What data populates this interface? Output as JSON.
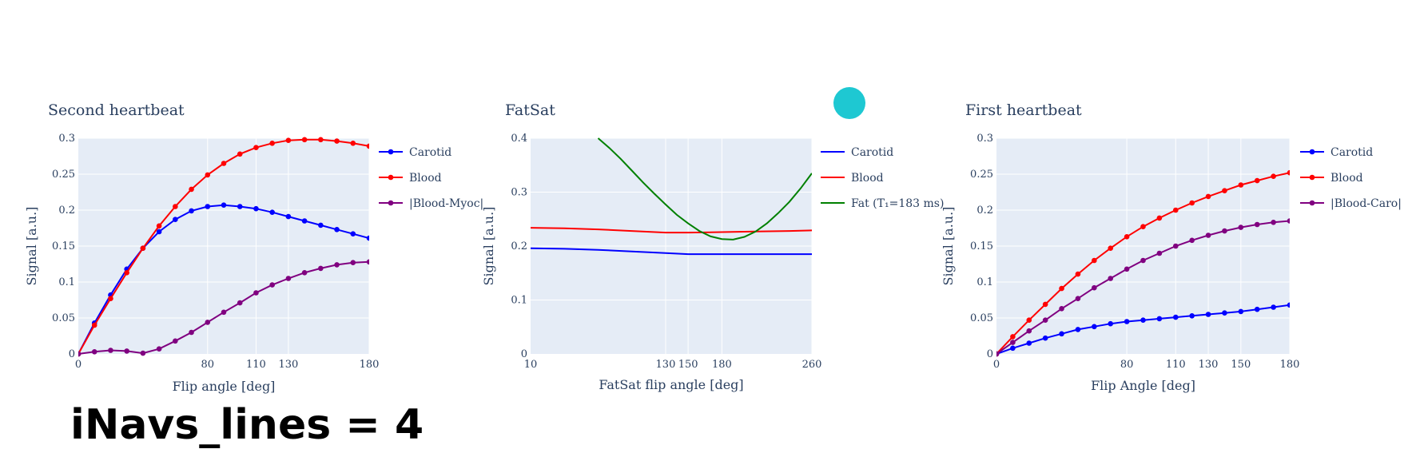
{
  "caption": "iNavs_lines = 4",
  "chart_data": [
    {
      "type": "line",
      "title": "Second heartbeat",
      "xlabel": "Flip angle [deg]",
      "ylabel": "Signal [a.u.]",
      "xlim": [
        0,
        180
      ],
      "ylim": [
        0,
        0.3
      ],
      "xticks": [
        0,
        80,
        110,
        130,
        180
      ],
      "yticks": [
        0,
        0.05,
        0.1,
        0.15,
        0.2,
        0.25,
        0.3
      ],
      "ytick_labels": [
        "0",
        "0.05",
        "0.1",
        "0.15",
        "0.2",
        "0.25",
        "0.3"
      ],
      "legend_position": "right",
      "markers": true,
      "x": [
        0,
        10,
        20,
        30,
        40,
        50,
        60,
        70,
        80,
        90,
        100,
        110,
        120,
        130,
        140,
        150,
        160,
        170,
        180
      ],
      "series": [
        {
          "name": "Carotid",
          "color": "#0000ff",
          "values": [
            0,
            0.043,
            0.082,
            0.118,
            0.147,
            0.17,
            0.187,
            0.199,
            0.205,
            0.207,
            0.205,
            0.202,
            0.197,
            0.191,
            0.185,
            0.179,
            0.173,
            0.167,
            0.161
          ]
        },
        {
          "name": "Blood",
          "color": "#ff0000",
          "values": [
            0,
            0.04,
            0.077,
            0.113,
            0.147,
            0.178,
            0.205,
            0.229,
            0.249,
            0.265,
            0.278,
            0.287,
            0.293,
            0.297,
            0.298,
            0.298,
            0.296,
            0.293,
            0.289
          ]
        },
        {
          "name": "|Blood-Myoc|",
          "color": "#800080",
          "values": [
            0,
            0.003,
            0.005,
            0.004,
            0.001,
            0.007,
            0.018,
            0.03,
            0.044,
            0.058,
            0.071,
            0.085,
            0.096,
            0.105,
            0.113,
            0.119,
            0.124,
            0.127,
            0.128
          ]
        }
      ]
    },
    {
      "type": "line",
      "title": "FatSat",
      "xlabel": "FatSat flip angle [deg]",
      "ylabel": "Signal [a.u.]",
      "xlim": [
        10,
        260
      ],
      "ylim": [
        0,
        0.4
      ],
      "xticks": [
        10,
        130,
        150,
        180,
        260
      ],
      "yticks": [
        0,
        0.1,
        0.2,
        0.3,
        0.4
      ],
      "ytick_labels": [
        "0",
        "0.1",
        "0.2",
        "0.3",
        "0.4"
      ],
      "legend_position": "right",
      "markers": false,
      "series": [
        {
          "name": "Carotid",
          "color": "#0000ff",
          "x": [
            10,
            40,
            70,
            100,
            130,
            150,
            180,
            210,
            240,
            260
          ],
          "values": [
            0.196,
            0.195,
            0.193,
            0.19,
            0.187,
            0.185,
            0.185,
            0.185,
            0.185,
            0.185
          ]
        },
        {
          "name": "Blood",
          "color": "#ff0000",
          "x": [
            10,
            40,
            70,
            100,
            130,
            150,
            180,
            210,
            240,
            260
          ],
          "values": [
            0.234,
            0.233,
            0.231,
            0.228,
            0.225,
            0.225,
            0.226,
            0.227,
            0.228,
            0.229
          ]
        },
        {
          "name": "Fat (T₁=183 ms)",
          "color": "#008000",
          "x": [
            70,
            80,
            90,
            100,
            110,
            120,
            130,
            140,
            150,
            160,
            170,
            180,
            190,
            200,
            210,
            220,
            230,
            240,
            250,
            260
          ],
          "values": [
            0.4,
            0.382,
            0.362,
            0.34,
            0.318,
            0.297,
            0.277,
            0.258,
            0.242,
            0.228,
            0.218,
            0.213,
            0.212,
            0.217,
            0.227,
            0.242,
            0.261,
            0.282,
            0.307,
            0.335
          ]
        }
      ]
    },
    {
      "type": "line",
      "title": "First heartbeat",
      "xlabel": "Flip Angle [deg]",
      "ylabel": "Signal [a.u.]",
      "xlim": [
        0,
        180
      ],
      "ylim": [
        0,
        0.3
      ],
      "xticks": [
        0,
        80,
        110,
        130,
        150,
        180
      ],
      "yticks": [
        0,
        0.05,
        0.1,
        0.15,
        0.2,
        0.25,
        0.3
      ],
      "ytick_labels": [
        "0",
        "0.05",
        "0.1",
        "0.15",
        "0.2",
        "0.25",
        "0.3"
      ],
      "legend_position": "right",
      "markers": true,
      "x": [
        0,
        10,
        20,
        30,
        40,
        50,
        60,
        70,
        80,
        90,
        100,
        110,
        120,
        130,
        140,
        150,
        160,
        170,
        180
      ],
      "series": [
        {
          "name": "Carotid",
          "color": "#0000ff",
          "values": [
            0,
            0.008,
            0.015,
            0.022,
            0.028,
            0.034,
            0.038,
            0.042,
            0.045,
            0.047,
            0.049,
            0.051,
            0.053,
            0.055,
            0.057,
            0.059,
            0.062,
            0.065,
            0.068
          ]
        },
        {
          "name": "Blood",
          "color": "#ff0000",
          "values": [
            0,
            0.024,
            0.047,
            0.069,
            0.091,
            0.111,
            0.13,
            0.147,
            0.163,
            0.177,
            0.189,
            0.2,
            0.21,
            0.219,
            0.227,
            0.235,
            0.241,
            0.247,
            0.252
          ]
        },
        {
          "name": "|Blood-Caro|",
          "color": "#800080",
          "values": [
            0,
            0.016,
            0.032,
            0.047,
            0.063,
            0.077,
            0.092,
            0.105,
            0.118,
            0.13,
            0.14,
            0.15,
            0.158,
            0.165,
            0.171,
            0.176,
            0.18,
            0.183,
            0.185
          ]
        }
      ]
    }
  ]
}
